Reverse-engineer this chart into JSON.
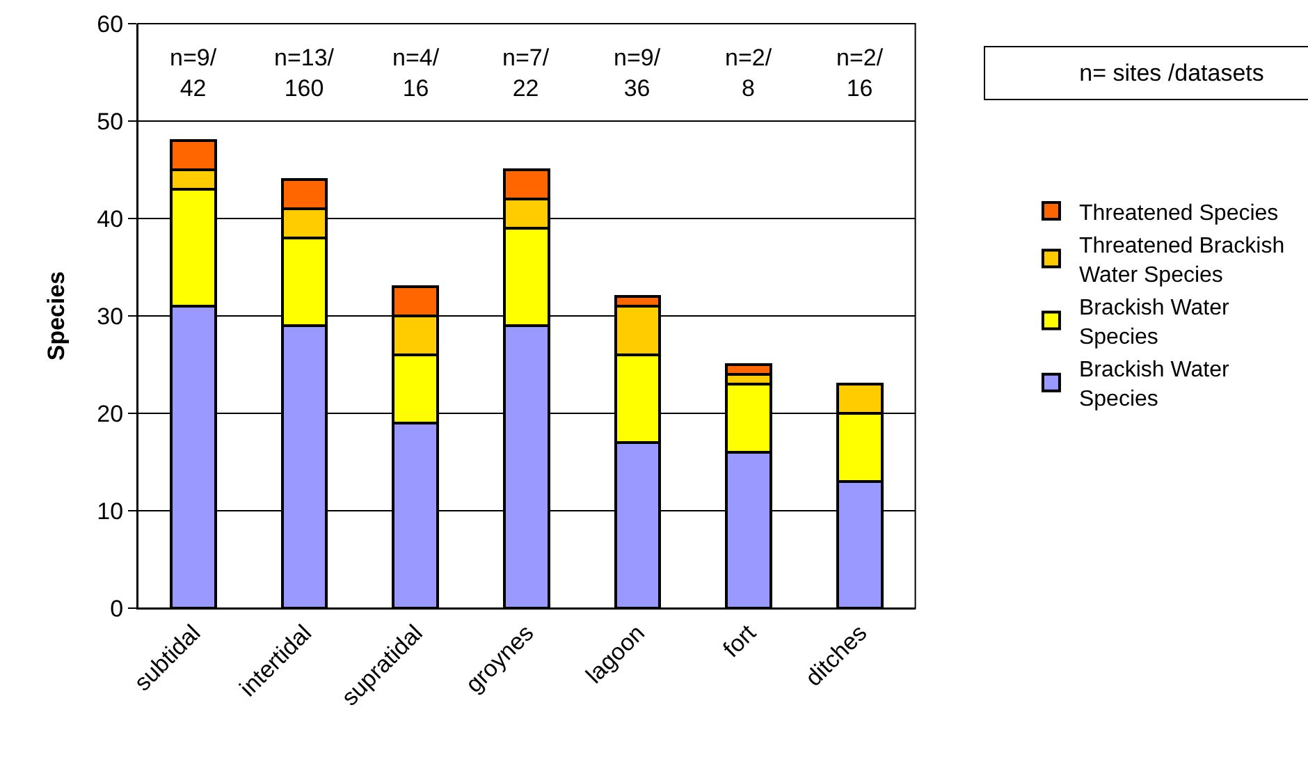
{
  "chart_data": {
    "type": "bar",
    "stacked": true,
    "ylabel": "Species",
    "categories": [
      "subtidal",
      "intertidal",
      "supratidal",
      "groynes",
      "lagoon",
      "fort",
      "ditches"
    ],
    "series": [
      {
        "name": "Brackish Water Species",
        "color": "#9999ff",
        "values": [
          31,
          29,
          19,
          29,
          17,
          16,
          13
        ]
      },
      {
        "name": "Brackish Water Species",
        "color": "#ffff00",
        "values": [
          12,
          9,
          7,
          10,
          9,
          7,
          7
        ]
      },
      {
        "name": "Threatened Brackish Water Species",
        "color": "#ffcc00",
        "values": [
          2,
          3,
          4,
          3,
          5,
          1,
          3
        ]
      },
      {
        "name": "Threatened Species",
        "color": "#ff6600",
        "values": [
          3,
          3,
          3,
          3,
          1,
          1,
          0
        ]
      }
    ],
    "ylim": [
      0,
      60
    ],
    "yticks": [
      0,
      10,
      20,
      30,
      40,
      50,
      60
    ],
    "grid": "y",
    "legend": "right",
    "annotations": [
      "n= sites /datasets",
      "n=9/\n42",
      "n=13/\n160",
      "n=4/\n16",
      "n=7/\n22",
      "n=9/\n36",
      "n=2/\n8",
      "n=2/\n16"
    ]
  }
}
